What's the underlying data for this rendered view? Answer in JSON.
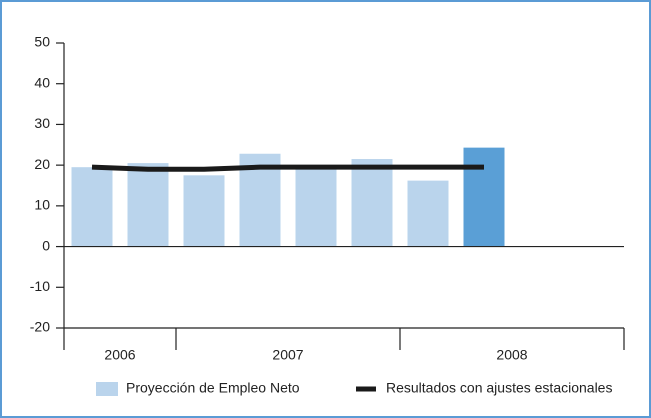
{
  "chart_data": {
    "type": "bar-line",
    "categories": [
      null,
      null,
      null,
      null,
      null,
      null,
      null,
      null,
      null,
      null
    ],
    "groups": [
      "2006",
      "2007",
      "2008"
    ],
    "group_sizes": [
      2,
      4,
      4
    ],
    "series": [
      {
        "name": "Proyección de Empleo Neto",
        "type": "bar",
        "color": "#bad4ec",
        "colors": [
          "#bad4ec",
          "#bad4ec",
          "#bad4ec",
          "#bad4ec",
          "#bad4ec",
          "#bad4ec",
          "#bad4ec",
          "#5a9fd6",
          null,
          null
        ],
        "values": [
          19.5,
          20.5,
          17.5,
          22.8,
          19.5,
          21.5,
          16.2,
          24.3,
          null,
          null
        ]
      },
      {
        "name": "Resultados con ajustes estacionales",
        "type": "line",
        "color": "#1a1a1a",
        "values": [
          19.5,
          19,
          19,
          19.5,
          19.5,
          19.5,
          19.5,
          19.5,
          null,
          null
        ]
      }
    ],
    "ylim": [
      -20,
      50
    ],
    "yticks": [
      -20,
      -10,
      0,
      10,
      20,
      30,
      40,
      50
    ],
    "legend": "bottom"
  }
}
